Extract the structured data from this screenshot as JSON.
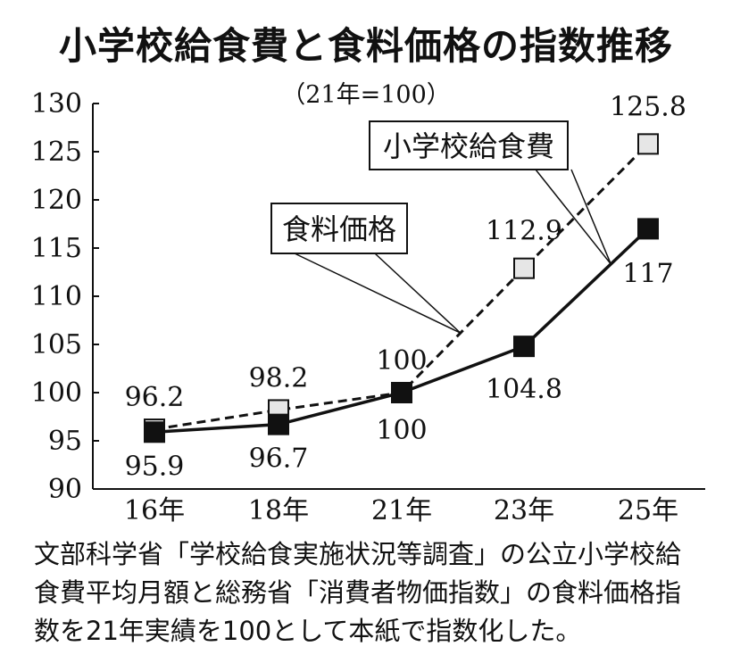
{
  "title": "小学校給食費と食料価格の指数推移",
  "subtitle": "（21年=100）",
  "chart_data": {
    "type": "line",
    "categories": [
      "16年",
      "18年",
      "21年",
      "23年",
      "25年"
    ],
    "series": [
      {
        "name": "小学校給食費",
        "values": [
          96.2,
          98.2,
          100,
          112.9,
          125.8
        ],
        "labels": [
          "96.2",
          "98.2",
          "100",
          "112.9",
          "125.8"
        ],
        "line_style": "dashed",
        "marker_fill": "#e6e6e6"
      },
      {
        "name": "食料価格",
        "values": [
          95.9,
          96.7,
          100,
          104.8,
          117
        ],
        "labels": [
          "95.9",
          "96.7",
          "100",
          "104.8",
          "117"
        ],
        "line_style": "solid",
        "marker_fill": "#111111"
      }
    ],
    "ylim": [
      90,
      130
    ],
    "yticks": [
      "90",
      "95",
      "100",
      "105",
      "110",
      "115",
      "120",
      "125",
      "130"
    ],
    "grid": false,
    "legend": "callout boxes"
  },
  "note": [
    "文部科学省「学校給食実施状況等調査」の公立小学校給",
    "食費平均月額と総務省「消費者物価指数」の食料価格指",
    "数を21年実績を100として本紙で指数化した。"
  ]
}
